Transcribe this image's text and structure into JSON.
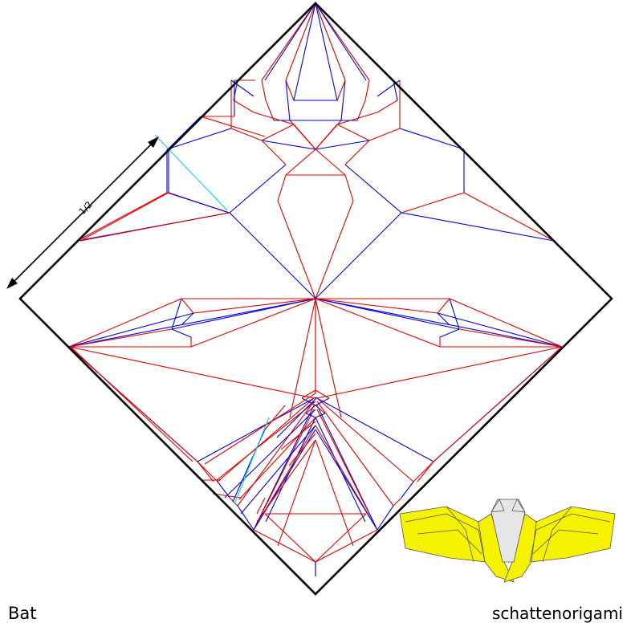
{
  "title": "Bat",
  "brand": "schattenorigami",
  "measure_label": "1/2",
  "colors": {
    "mountain": "#e00000",
    "valley": "#0000e0",
    "border": "#000000",
    "reference": "#00d8e8",
    "paper": "#f6f200",
    "paper_shade": "#e6e6e6"
  }
}
